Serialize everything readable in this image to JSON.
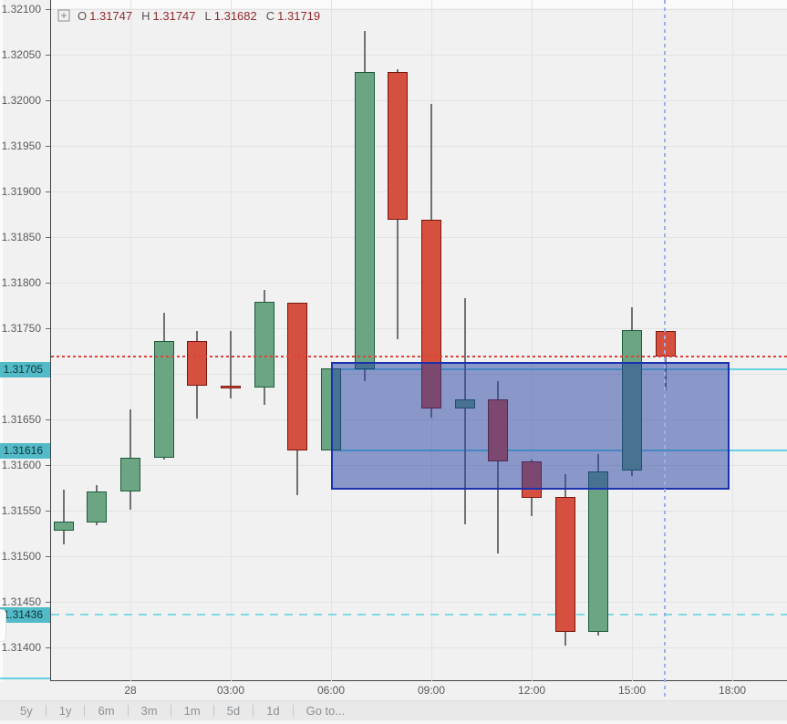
{
  "legend": {
    "items": [
      {
        "k": "O",
        "v": "1.31747"
      },
      {
        "k": "H",
        "v": "1.31747"
      },
      {
        "k": "L",
        "v": "1.31682"
      },
      {
        "k": "C",
        "v": "1.31719"
      }
    ]
  },
  "price_axis": {
    "labels": [
      "1.32100",
      "1.32050",
      "1.32000",
      "1.31950",
      "1.31900",
      "1.31850",
      "1.31800",
      "1.31750",
      "1.31700",
      "1.31650",
      "1.31600",
      "1.31550",
      "1.31500",
      "1.31450",
      "1.31400"
    ],
    "badges": [
      {
        "text": "1.31705",
        "price": 1.31705
      },
      {
        "text": "1.31616",
        "price": 1.31616
      },
      {
        "text": "1.31436",
        "price": 1.31436
      }
    ]
  },
  "time_axis": {
    "labels": [
      {
        "label": "28",
        "hour": 0
      },
      {
        "label": "03:00",
        "hour": 3
      },
      {
        "label": "06:00",
        "hour": 6
      },
      {
        "label": "09:00",
        "hour": 9
      },
      {
        "label": "12:00",
        "hour": 12
      },
      {
        "label": "15:00",
        "hour": 15
      },
      {
        "label": "18:00",
        "hour": 18
      }
    ]
  },
  "toolbar": {
    "items": [
      "5y",
      "1y",
      "6m",
      "3m",
      "1m",
      "5d",
      "1d",
      "Go to..."
    ]
  },
  "chart_data": {
    "type": "candlestick",
    "ylabel": "",
    "xlabel": "",
    "ylim": [
      1.314,
      1.321
    ],
    "grid": true,
    "price_step": 0.0005,
    "candles": [
      {
        "t": "22:00",
        "h": -2,
        "o": 1.31528,
        "hi": 1.31573,
        "lo": 1.31513,
        "c": 1.31538
      },
      {
        "t": "23:00",
        "h": -1,
        "o": 1.31537,
        "hi": 1.31578,
        "lo": 1.31534,
        "c": 1.31571
      },
      {
        "t": "00:00",
        "h": 0,
        "o": 1.31571,
        "hi": 1.31661,
        "lo": 1.31551,
        "c": 1.31608
      },
      {
        "t": "01:00",
        "h": 1,
        "o": 1.31608,
        "hi": 1.31767,
        "lo": 1.31606,
        "c": 1.31736
      },
      {
        "t": "02:00",
        "h": 2,
        "o": 1.31736,
        "hi": 1.31747,
        "lo": 1.31651,
        "c": 1.31687
      },
      {
        "t": "03:00",
        "h": 3,
        "o": 1.31687,
        "hi": 1.31747,
        "lo": 1.31673,
        "c": 1.31684
      },
      {
        "t": "04:00",
        "h": 4,
        "o": 1.31685,
        "hi": 1.31792,
        "lo": 1.31666,
        "c": 1.31779
      },
      {
        "t": "05:00",
        "h": 5,
        "o": 1.31778,
        "hi": 1.31778,
        "lo": 1.31567,
        "c": 1.31616
      },
      {
        "t": "06:00",
        "h": 6,
        "o": 1.31616,
        "hi": 1.31706,
        "lo": 1.31616,
        "c": 1.31706
      },
      {
        "t": "07:00",
        "h": 7,
        "o": 1.31705,
        "hi": 1.32076,
        "lo": 1.31692,
        "c": 1.32031
      },
      {
        "t": "08:00",
        "h": 8,
        "o": 1.32031,
        "hi": 1.32034,
        "lo": 1.31738,
        "c": 1.31869
      },
      {
        "t": "09:00",
        "h": 9,
        "o": 1.31869,
        "hi": 1.31996,
        "lo": 1.31652,
        "c": 1.31662
      },
      {
        "t": "10:00",
        "h": 10,
        "o": 1.31662,
        "hi": 1.31783,
        "lo": 1.31535,
        "c": 1.31672
      },
      {
        "t": "11:00",
        "h": 11,
        "o": 1.31672,
        "hi": 1.31692,
        "lo": 1.31503,
        "c": 1.31604
      },
      {
        "t": "12:00",
        "h": 12,
        "o": 1.31604,
        "hi": 1.31606,
        "lo": 1.31544,
        "c": 1.31564
      },
      {
        "t": "13:00",
        "h": 13,
        "o": 1.31565,
        "hi": 1.3159,
        "lo": 1.31402,
        "c": 1.31417
      },
      {
        "t": "14:00",
        "h": 14,
        "o": 1.31417,
        "hi": 1.31612,
        "lo": 1.31413,
        "c": 1.31593
      },
      {
        "t": "15:00",
        "h": 15,
        "o": 1.31594,
        "hi": 1.31773,
        "lo": 1.31588,
        "c": 1.31748
      },
      {
        "t": "16:00",
        "h": 16,
        "o": 1.31747,
        "hi": 1.31747,
        "lo": 1.31682,
        "c": 1.31719
      }
    ],
    "price_lines": [
      {
        "price": 1.31719,
        "style": "dotted",
        "role": "last-price",
        "layer": "over",
        "from_hour": null
      },
      {
        "price": 1.31705,
        "style": "solid",
        "role": "range-top",
        "layer": "under",
        "from_hour": 6
      },
      {
        "price": 1.31616,
        "style": "solid",
        "role": "range-bottom",
        "layer": "under",
        "from_hour": 6
      },
      {
        "price": 1.31436,
        "style": "dashed",
        "role": "alert-level",
        "layer": "under",
        "from_hour": null
      }
    ],
    "range_box": {
      "hour_from": 6.0,
      "hour_to": 17.93,
      "price_top": 1.31713,
      "price_bottom": 1.31573
    },
    "time_marker": {
      "hour": 15.97,
      "style": "dashed"
    }
  },
  "colors": {
    "up_fill": "#6ba583",
    "up_border": "#1c5c3b",
    "down_fill": "#d5503f",
    "down_border": "#78160f",
    "wick": "#717175",
    "grid": "#e3e3e3",
    "axis_text": "#5b5b5b",
    "badge_bg": "#53bac7",
    "badge_text": "#0e3338",
    "last_price": "#dd4338",
    "level_cyan": "#66d1e3",
    "alert_cyan": "#7fd8e6",
    "box_fill": "rgba(35,63,161,0.5)",
    "box_border": "#1b32b0",
    "vline": "#9cafec",
    "legend_key": "#5c5252",
    "legend_value": "#93292c"
  }
}
